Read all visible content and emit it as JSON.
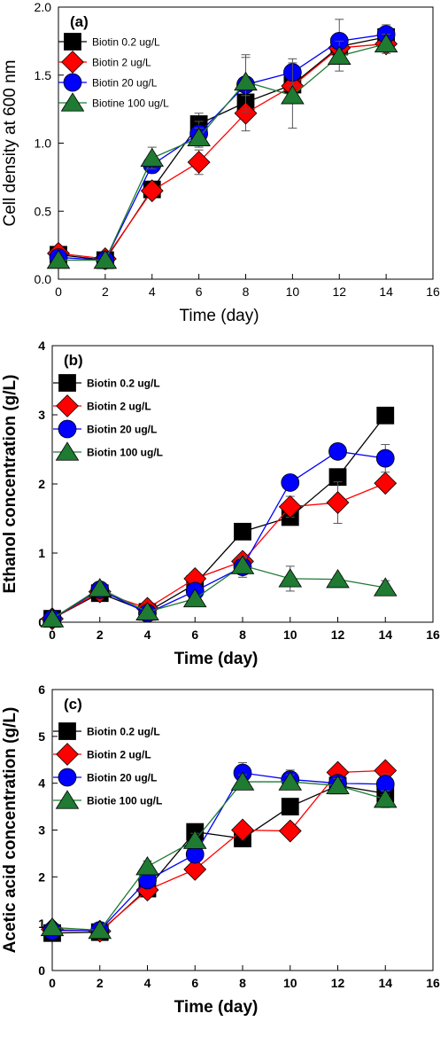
{
  "colors": {
    "black": "#000000",
    "red": "#ff0000",
    "blue": "#0000ff",
    "green": "#1f7a32"
  },
  "chart_data": [
    {
      "type": "line",
      "panel_label": "(a)",
      "xlabel": "Time (day)",
      "ylabel": "Cell density at 600 nm",
      "xlim": [
        0,
        16
      ],
      "ylim": [
        0,
        2.0
      ],
      "xticks": [
        "0",
        "2",
        "4",
        "6",
        "8",
        "10",
        "12",
        "14",
        "16"
      ],
      "yticks": [
        "0.0",
        "0.5",
        "1.0",
        "1.5",
        "2.0"
      ],
      "x": [
        0,
        2,
        4,
        6,
        8,
        10,
        12,
        14
      ],
      "legend_position": "top-left",
      "series": [
        {
          "name": "Biotin 0.2 ug/L",
          "marker": "square",
          "color": "#000000",
          "values": [
            0.18,
            0.14,
            0.66,
            1.14,
            1.3,
            1.43,
            1.71,
            1.78
          ],
          "errors": [
            0.02,
            0.02,
            0.03,
            0.08,
            0.06,
            0.1,
            0.06,
            0.05
          ]
        },
        {
          "name": "Biotin 2 ug/L",
          "marker": "diamond",
          "color": "#ff0000",
          "values": [
            0.19,
            0.15,
            0.65,
            0.86,
            1.22,
            1.42,
            1.7,
            1.73
          ],
          "errors": [
            0.02,
            0.02,
            0.03,
            0.09,
            0.13,
            0.1,
            0.05,
            0.05
          ]
        },
        {
          "name": "Biotin 20 ug/L",
          "marker": "circle",
          "color": "#0000ff",
          "values": [
            0.16,
            0.14,
            0.84,
            1.07,
            1.43,
            1.52,
            1.75,
            1.8
          ],
          "errors": [
            0.02,
            0.02,
            0.06,
            0.09,
            0.2,
            0.1,
            0.16,
            0.07
          ]
        },
        {
          "name": "Biotine 100 ug/L",
          "marker": "triangle",
          "color": "#1f7a32",
          "values": [
            0.14,
            0.14,
            0.89,
            1.04,
            1.45,
            1.35,
            1.64,
            1.73
          ],
          "errors": [
            0.02,
            0.02,
            0.08,
            0.07,
            0.2,
            0.24,
            0.11,
            0.07
          ]
        }
      ]
    },
    {
      "type": "line",
      "panel_label": "(b)",
      "xlabel": "Time (day)",
      "ylabel": "Ethanol concentration (g/L)",
      "xlim": [
        0,
        16
      ],
      "ylim": [
        0,
        4
      ],
      "xticks": [
        "0",
        "2",
        "4",
        "6",
        "8",
        "10",
        "12",
        "14",
        "16"
      ],
      "yticks": [
        "0",
        "1",
        "2",
        "3",
        "4"
      ],
      "x": [
        0,
        2,
        4,
        6,
        8,
        10,
        12,
        14
      ],
      "legend_position": "top-left",
      "series": [
        {
          "name": "Biotin 0.2 ug/L",
          "marker": "square",
          "color": "#000000",
          "values": [
            0.05,
            0.42,
            0.15,
            0.55,
            1.31,
            1.52,
            2.1,
            2.99
          ],
          "errors": [
            0.02,
            0.04,
            0.03,
            0.05,
            0.05,
            0.06,
            0.06,
            0.05
          ]
        },
        {
          "name": "Biotin 2 ug/L",
          "marker": "diamond",
          "color": "#ff0000",
          "values": [
            0.05,
            0.44,
            0.2,
            0.63,
            0.88,
            1.67,
            1.73,
            2.01
          ],
          "errors": [
            0.02,
            0.04,
            0.03,
            0.06,
            0.08,
            0.15,
            0.3,
            0.08
          ]
        },
        {
          "name": "Biotin 20 ug/L",
          "marker": "circle",
          "color": "#0000ff",
          "values": [
            0.05,
            0.47,
            0.13,
            0.45,
            0.8,
            2.02,
            2.47,
            2.37
          ],
          "errors": [
            0.02,
            0.04,
            0.03,
            0.05,
            0.15,
            0.08,
            0.06,
            0.2
          ]
        },
        {
          "name": "Biotin 100 ug/L",
          "marker": "triangle",
          "color": "#1f7a32",
          "values": [
            0.05,
            0.49,
            0.15,
            0.34,
            0.82,
            0.63,
            0.62,
            0.5
          ],
          "errors": [
            0.02,
            0.04,
            0.03,
            0.04,
            0.1,
            0.18,
            0.05,
            0.1
          ]
        }
      ]
    },
    {
      "type": "line",
      "panel_label": "(c)",
      "xlabel": "Time (day)",
      "ylabel": "Acetic acid concentration (g/L)",
      "xlim": [
        0,
        16
      ],
      "ylim": [
        0,
        6
      ],
      "xticks": [
        "0",
        "2",
        "4",
        "6",
        "8",
        "10",
        "12",
        "14",
        "16"
      ],
      "yticks": [
        "0",
        "1",
        "2",
        "3",
        "4",
        "5",
        "6"
      ],
      "x": [
        0,
        2,
        4,
        6,
        8,
        10,
        12,
        14
      ],
      "legend_position": "top-left",
      "series": [
        {
          "name": "Biotin 0.2 ug/L",
          "marker": "square",
          "color": "#000000",
          "values": [
            0.8,
            0.82,
            1.75,
            2.96,
            2.82,
            3.5,
            3.95,
            3.78
          ],
          "errors": [
            0.05,
            0.05,
            0.08,
            0.1,
            0.1,
            0.1,
            0.12,
            0.15
          ]
        },
        {
          "name": "Biotin 2 ug/L",
          "marker": "diamond",
          "color": "#ff0000",
          "values": [
            0.88,
            0.84,
            1.72,
            2.16,
            3.0,
            2.98,
            4.23,
            4.27
          ],
          "errors": [
            0.05,
            0.05,
            0.08,
            0.1,
            0.1,
            0.1,
            0.12,
            0.12
          ]
        },
        {
          "name": "Biotin 20 ug/L",
          "marker": "circle",
          "color": "#0000ff",
          "values": [
            0.85,
            0.86,
            1.93,
            2.48,
            4.22,
            4.08,
            4.0,
            3.98
          ],
          "errors": [
            0.05,
            0.05,
            0.1,
            0.15,
            0.22,
            0.2,
            0.15,
            0.22
          ]
        },
        {
          "name": "Biotie 100 ug/L",
          "marker": "triangle",
          "color": "#1f7a32",
          "values": [
            0.92,
            0.86,
            2.22,
            2.78,
            4.03,
            4.03,
            3.95,
            3.66
          ],
          "errors": [
            0.05,
            0.05,
            0.12,
            0.15,
            0.15,
            0.15,
            0.15,
            0.18
          ]
        }
      ]
    }
  ]
}
